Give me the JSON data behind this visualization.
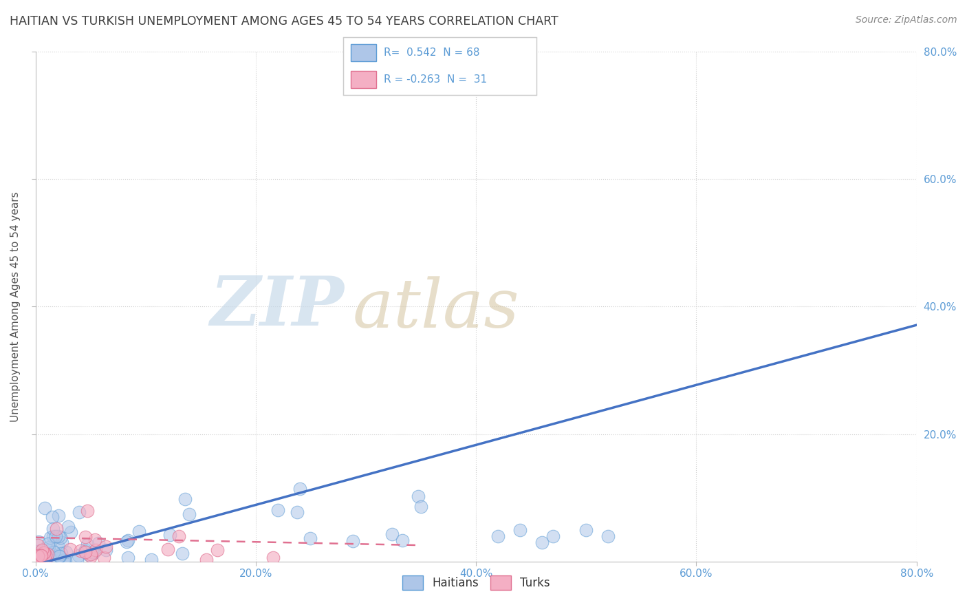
{
  "title": "HAITIAN VS TURKISH UNEMPLOYMENT AMONG AGES 45 TO 54 YEARS CORRELATION CHART",
  "source": "Source: ZipAtlas.com",
  "ylabel": "Unemployment Among Ages 45 to 54 years",
  "xlim": [
    0.0,
    0.8
  ],
  "ylim": [
    0.0,
    0.8
  ],
  "haitian_R": 0.542,
  "haitian_N": 68,
  "turkish_R": -0.263,
  "turkish_N": 31,
  "haitian_color": "#aec6e8",
  "turkish_color": "#f4afc4",
  "haitian_edge_color": "#5b9bd5",
  "turkish_edge_color": "#e07090",
  "haitian_line_color": "#4472c4",
  "turkish_line_color": "#e07090",
  "watermark_zip": "ZIP",
  "watermark_atlas": "atlas",
  "background_color": "#ffffff",
  "grid_color": "#d0d0d0",
  "title_color": "#404040",
  "tick_label_color": "#5b9bd5",
  "legend_label_color": "#5b9bd5",
  "haitian_line_slope": 0.47,
  "haitian_line_intercept": -0.005,
  "turkish_line_slope": -0.035,
  "turkish_line_intercept": 0.038,
  "turkish_line_xmax": 0.35
}
